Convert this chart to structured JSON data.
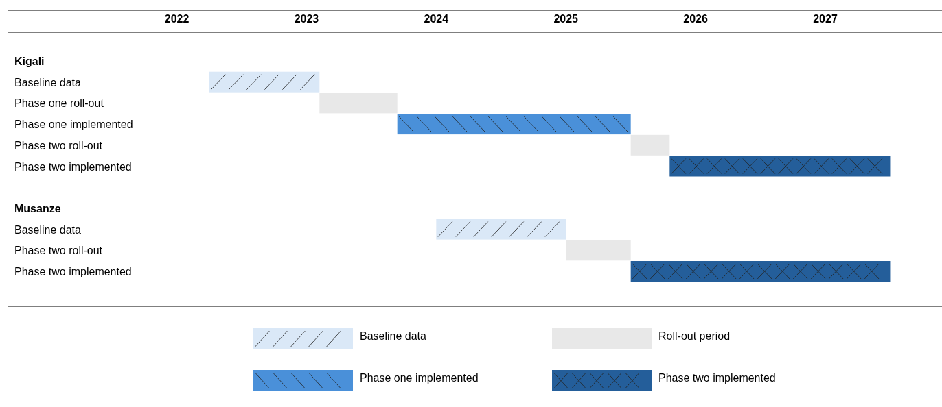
{
  "chart_data": {
    "type": "bar",
    "orientation": "horizontal",
    "legend": "bottom",
    "grid": false,
    "categories": [
      "Kigali",
      "Baseline data",
      "Phase one roll-out",
      "Phase one implemented",
      "Phase two roll-out",
      "Phase two implemented",
      null,
      "Musanze",
      "Baseline data",
      "Phase two roll-out",
      "Phase two implemented"
    ],
    "xlim": [
      2021.2,
      2028.4
    ],
    "xticks": [
      {
        "value": 2022.5,
        "label": "2022"
      },
      {
        "value": 2023.5,
        "label": "2023"
      },
      {
        "value": 2024.5,
        "label": "2024"
      },
      {
        "value": 2025.5,
        "label": "2025"
      },
      {
        "value": 2026.5,
        "label": "2026"
      },
      {
        "value": 2027.5,
        "label": "2027"
      }
    ],
    "series": [
      {
        "name": "Baseline data",
        "color": "#dae8f7",
        "values": [
          null,
          0.85,
          null,
          null,
          null,
          null,
          null,
          null,
          1.0,
          null,
          null
        ],
        "base": [
          null,
          2022.75,
          null,
          null,
          null,
          null,
          null,
          null,
          2024.5,
          null,
          null
        ]
      },
      {
        "name": "Roll-out period",
        "color": "#e8e8e8",
        "values": [
          null,
          null,
          0.6,
          null,
          0.3,
          null,
          null,
          null,
          null,
          0.5,
          null
        ],
        "base": [
          null,
          null,
          2023.6,
          null,
          2026.0,
          null,
          null,
          null,
          null,
          2025.5,
          null
        ]
      },
      {
        "name": "Phase one implemented",
        "color": "#4a90d9",
        "values": [
          null,
          null,
          null,
          1.8,
          null,
          null,
          null,
          null,
          null,
          null,
          null
        ],
        "base": [
          null,
          null,
          null,
          2024.2,
          null,
          null,
          null,
          null,
          null,
          null,
          null
        ]
      },
      {
        "name": "Phase two implemented",
        "color": "#245e9a",
        "values": [
          null,
          null,
          null,
          null,
          null,
          1.7,
          null,
          null,
          null,
          null,
          2.0
        ],
        "base": [
          null,
          null,
          null,
          null,
          null,
          2026.3,
          null,
          null,
          null,
          null,
          2026.0
        ]
      }
    ]
  }
}
